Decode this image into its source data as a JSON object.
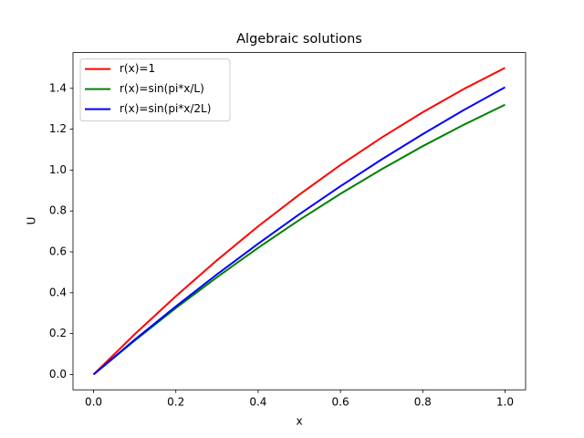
{
  "chart_data": {
    "type": "line",
    "title": "Algebraic solutions",
    "x_label": "x",
    "y_label": "U",
    "x": [
      0,
      0.1,
      0.2,
      0.3,
      0.4,
      0.5,
      0.6,
      0.7,
      0.8,
      0.9,
      1
    ],
    "series": [
      {
        "name": "r(x)=1",
        "color": "#ff0000",
        "values": [
          0,
          0.197,
          0.383,
          0.559,
          0.725,
          0.88,
          1.025,
          1.159,
          1.283,
          1.397,
          1.5
        ]
      },
      {
        "name": "r(x)=sin(pi*x/L)",
        "color": "#008000",
        "values": [
          0,
          0.166,
          0.325,
          0.476,
          0.62,
          0.756,
          0.884,
          1.004,
          1.117,
          1.222,
          1.32
        ]
      },
      {
        "name": "r(x)=sin(pi*x/2L)",
        "color": "#0000ff",
        "values": [
          0,
          0.17,
          0.333,
          0.49,
          0.64,
          0.784,
          0.921,
          1.052,
          1.176,
          1.294,
          1.405
        ]
      }
    ],
    "xlim": [
      -0.05,
      1.05
    ],
    "ylim": [
      -0.075,
      1.575
    ],
    "xticks": [
      {
        "value": 0,
        "label": "0.0"
      },
      0.2,
      0.4,
      0.6,
      0.8,
      {
        "value": 1,
        "label": "1.0"
      }
    ],
    "yticks": [
      {
        "value": 0,
        "label": "0.0"
      },
      0.2,
      0.4,
      0.6,
      0.8,
      {
        "value": 1,
        "label": "1.0"
      },
      1.2,
      1.4
    ],
    "grid": false,
    "legend": "upper-left"
  }
}
